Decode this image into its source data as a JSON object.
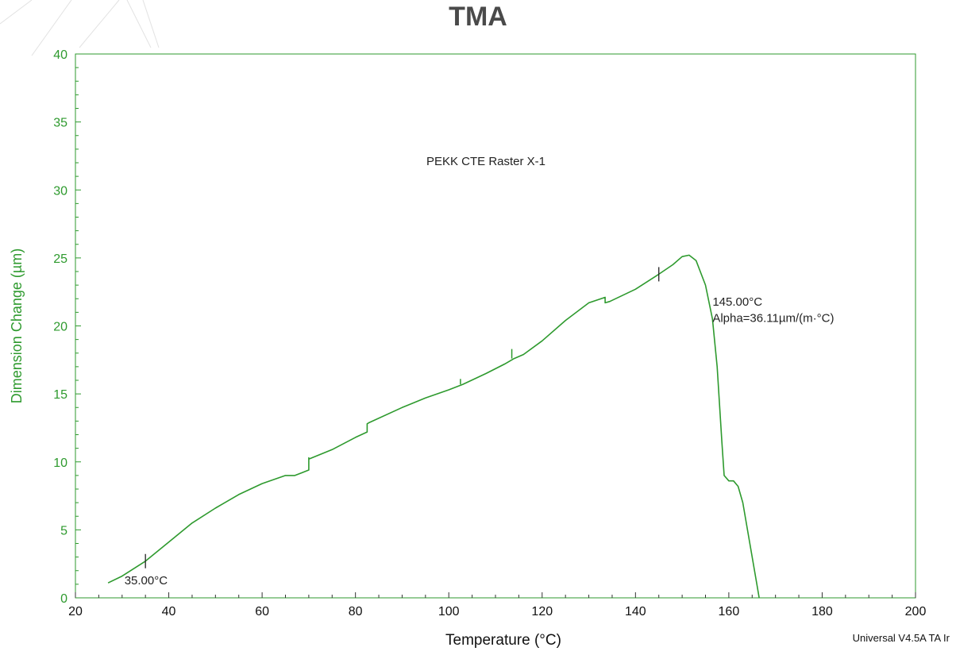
{
  "page_title": "TMA",
  "chart_data": {
    "type": "line",
    "title": "TMA",
    "subtitle": "PEKK CTE Raster X-1",
    "xlabel": "Temperature (°C)",
    "ylabel": "Dimension Change (µm)",
    "xlim": [
      20,
      200
    ],
    "ylim": [
      0,
      40
    ],
    "xticks": [
      20,
      40,
      60,
      80,
      100,
      120,
      140,
      160,
      180,
      200
    ],
    "yticks": [
      0,
      5,
      10,
      15,
      20,
      25,
      30,
      35,
      40
    ],
    "grid": false,
    "color": "#2e9a2e",
    "series": [
      {
        "x": [
          27,
          30,
          35,
          40,
          45,
          50,
          55,
          60,
          65,
          66,
          67,
          70,
          70,
          70,
          75,
          80,
          82.5,
          82.5,
          83,
          90,
          95,
          100,
          103,
          108,
          112,
          114,
          116,
          120,
          125,
          130,
          133.5,
          133.5,
          134.5,
          140,
          145,
          148,
          150,
          151.5,
          153,
          155,
          156.5,
          157.5,
          158.5,
          159,
          160,
          161,
          162,
          163,
          164,
          165,
          166,
          166.5
        ],
        "y": [
          1.1,
          1.6,
          2.7,
          4.1,
          5.5,
          6.6,
          7.6,
          8.4,
          9.0,
          9.0,
          9.0,
          9.4,
          10.3,
          10.2,
          10.9,
          11.8,
          12.2,
          12.8,
          12.9,
          14.0,
          14.7,
          15.3,
          15.7,
          16.5,
          17.2,
          17.6,
          17.9,
          18.9,
          20.4,
          21.7,
          22.1,
          21.7,
          21.8,
          22.7,
          23.8,
          24.5,
          25.1,
          25.2,
          24.8,
          23.0,
          20.5,
          17.0,
          11.5,
          9.0,
          8.6,
          8.6,
          8.2,
          7.0,
          5.0,
          3.0,
          1.0,
          0
        ]
      }
    ],
    "spikes": [
      {
        "x": 113.5,
        "y0": 17.6,
        "y1": 18.3
      },
      {
        "x": 102.5,
        "y0": 15.7,
        "y1": 16.1
      }
    ],
    "markers": [
      {
        "x": 35,
        "y": 2.7
      },
      {
        "x": 145,
        "y": 23.8
      }
    ],
    "annotations": [
      {
        "text": "35.00°C",
        "x": 30.5,
        "y": 1.0,
        "anchor": "start"
      },
      {
        "text": "145.00°C",
        "x": 156.5,
        "y": 21.5,
        "anchor": "start"
      },
      {
        "text": "Alpha=36.11µm/(m·°C)",
        "x": 156.5,
        "y": 20.3,
        "anchor": "start"
      }
    ],
    "footer": "Universal V4.5A TA Ir"
  }
}
